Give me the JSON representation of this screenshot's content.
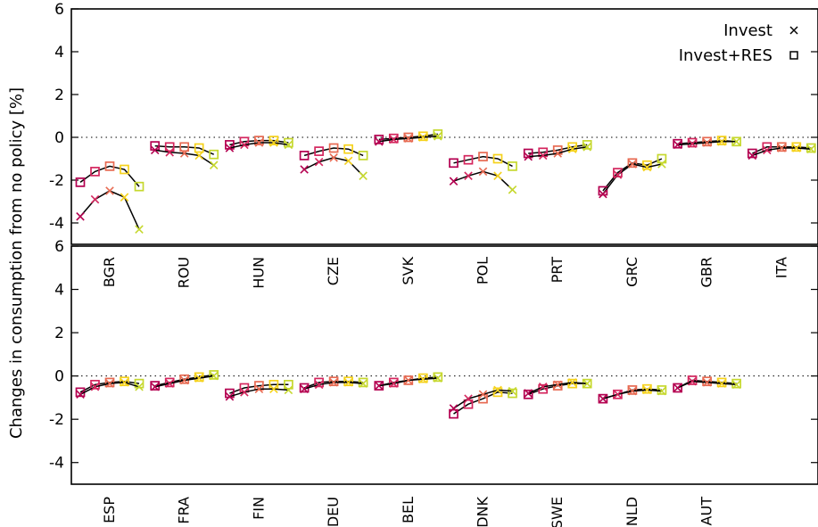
{
  "chart_data": {
    "type": "line",
    "ylabel": "Changes in consumption from no policy [%]",
    "ylim": [
      -5,
      6
    ],
    "yticks": [
      -4,
      -2,
      0,
      2,
      4,
      6
    ],
    "zero_line": "dotted",
    "legend": {
      "placement": "top-right",
      "entries": [
        {
          "label": "Invest",
          "marker": "x"
        },
        {
          "label": "Invest+RES",
          "marker": "square"
        }
      ]
    },
    "point_colors": [
      "#b40050",
      "#d4265e",
      "#e76a52",
      "#f7a53c",
      "#f5d21c",
      "#c6d82e",
      "#7cc43e"
    ],
    "panels": [
      {
        "name": "top",
        "countries": [
          {
            "code": "BGR",
            "invest": [
              -3.7,
              -2.9,
              -2.5,
              -2.8,
              -4.3
            ],
            "invest_res": [
              -2.1,
              -1.6,
              -1.35,
              -1.5,
              -2.3
            ]
          },
          {
            "code": "ROU",
            "invest": [
              -0.6,
              -0.7,
              -0.75,
              -0.85,
              -1.3
            ],
            "invest_res": [
              -0.4,
              -0.45,
              -0.45,
              -0.5,
              -0.8
            ]
          },
          {
            "code": "HUN",
            "invest": [
              -0.5,
              -0.35,
              -0.25,
              -0.25,
              -0.35
            ],
            "invest_res": [
              -0.35,
              -0.2,
              -0.15,
              -0.15,
              -0.25
            ]
          },
          {
            "code": "CZE",
            "invest": [
              -1.5,
              -1.15,
              -0.95,
              -1.1,
              -1.8
            ],
            "invest_res": [
              -0.85,
              -0.65,
              -0.5,
              -0.55,
              -0.85
            ]
          },
          {
            "code": "SVK",
            "invest": [
              -0.2,
              -0.1,
              -0.05,
              0.0,
              0.05
            ],
            "invest_res": [
              -0.1,
              -0.05,
              0.0,
              0.05,
              0.15
            ]
          },
          {
            "code": "POL",
            "invest": [
              -2.05,
              -1.8,
              -1.6,
              -1.8,
              -2.45
            ],
            "invest_res": [
              -1.2,
              -1.05,
              -0.9,
              -1.0,
              -1.35
            ]
          },
          {
            "code": "PRT",
            "invest": [
              -0.9,
              -0.85,
              -0.75,
              -0.55,
              -0.45
            ],
            "invest_res": [
              -0.75,
              -0.7,
              -0.6,
              -0.45,
              -0.35
            ]
          },
          {
            "code": "GRC",
            "invest": [
              -2.65,
              -1.75,
              -1.25,
              -1.4,
              -1.25
            ],
            "invest_res": [
              -2.5,
              -1.65,
              -1.2,
              -1.3,
              -1.0
            ]
          },
          {
            "code": "GBR",
            "invest": [
              -0.35,
              -0.3,
              -0.25,
              -0.2,
              -0.2
            ],
            "invest_res": [
              -0.3,
              -0.25,
              -0.2,
              -0.15,
              -0.2
            ]
          },
          {
            "code": "ITA",
            "invest": [
              -0.85,
              -0.6,
              -0.5,
              -0.5,
              -0.55
            ],
            "invest_res": [
              -0.75,
              -0.45,
              -0.45,
              -0.45,
              -0.5
            ]
          }
        ]
      },
      {
        "name": "bottom",
        "countries": [
          {
            "code": "ESP",
            "invest": [
              -0.85,
              -0.5,
              -0.35,
              -0.3,
              -0.5
            ],
            "invest_res": [
              -0.75,
              -0.4,
              -0.3,
              -0.25,
              -0.35
            ]
          },
          {
            "code": "FRA",
            "invest": [
              -0.5,
              -0.35,
              -0.2,
              -0.1,
              0.0
            ],
            "invest_res": [
              -0.45,
              -0.3,
              -0.15,
              -0.05,
              0.05
            ]
          },
          {
            "code": "FIN",
            "invest": [
              -0.95,
              -0.75,
              -0.6,
              -0.6,
              -0.65
            ],
            "invest_res": [
              -0.8,
              -0.55,
              -0.45,
              -0.4,
              -0.4
            ]
          },
          {
            "code": "DEU",
            "invest": [
              -0.6,
              -0.4,
              -0.3,
              -0.3,
              -0.35
            ],
            "invest_res": [
              -0.55,
              -0.3,
              -0.25,
              -0.25,
              -0.3
            ]
          },
          {
            "code": "BEL",
            "invest": [
              -0.45,
              -0.35,
              -0.2,
              -0.15,
              -0.1
            ],
            "invest_res": [
              -0.45,
              -0.3,
              -0.2,
              -0.1,
              -0.05
            ]
          },
          {
            "code": "DNK",
            "invest": [
              -1.5,
              -1.05,
              -0.85,
              -0.65,
              -0.7
            ],
            "invest_res": [
              -1.75,
              -1.3,
              -1.05,
              -0.75,
              -0.8
            ]
          },
          {
            "code": "SWE",
            "invest": [
              -0.8,
              -0.5,
              -0.4,
              -0.3,
              -0.35
            ],
            "invest_res": [
              -0.85,
              -0.6,
              -0.45,
              -0.35,
              -0.35
            ]
          },
          {
            "code": "NLD",
            "invest": [
              -1.05,
              -0.85,
              -0.7,
              -0.65,
              -0.7
            ],
            "invest_res": [
              -1.05,
              -0.85,
              -0.65,
              -0.6,
              -0.65
            ]
          },
          {
            "code": "AUT",
            "invest": [
              -0.55,
              -0.25,
              -0.3,
              -0.35,
              -0.4
            ],
            "invest_res": [
              -0.55,
              -0.2,
              -0.25,
              -0.3,
              -0.35
            ]
          }
        ]
      }
    ]
  }
}
